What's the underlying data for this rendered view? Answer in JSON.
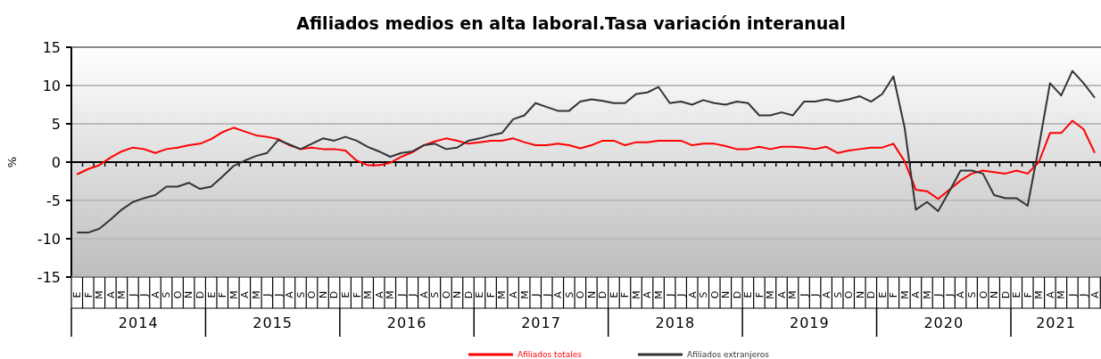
{
  "chart_data": {
    "type": "line",
    "title": "Afiliados medios en alta laboral.Tasa variación interanual",
    "ylabel": "%",
    "categories": [
      "E",
      "F",
      "M",
      "A",
      "M",
      "J",
      "J",
      "A",
      "S",
      "O",
      "N",
      "D",
      "E",
      "F",
      "M",
      "A",
      "M",
      "J",
      "J",
      "A",
      "S",
      "O",
      "N",
      "D",
      "E",
      "F",
      "M",
      "A",
      "M",
      "J",
      "J",
      "A",
      "S",
      "O",
      "N",
      "D",
      "E",
      "F",
      "M",
      "A",
      "M",
      "J",
      "J",
      "A",
      "S",
      "O",
      "N",
      "D",
      "E",
      "F",
      "M",
      "A",
      "M",
      "J",
      "J",
      "A",
      "S",
      "O",
      "N",
      "D",
      "E",
      "F",
      "M",
      "A",
      "M",
      "J",
      "J",
      "A",
      "S",
      "O",
      "N",
      "D",
      "E",
      "F",
      "M",
      "A",
      "M",
      "J",
      "J",
      "A",
      "S",
      "O",
      "N",
      "D",
      "E",
      "F",
      "M",
      "A",
      "M",
      "J",
      "J",
      "A"
    ],
    "annotations": [
      "2014",
      "2015",
      "2016",
      "2017",
      "2018",
      "2019",
      "2020",
      "2021"
    ],
    "series": [
      {
        "name": "Afiliados totales",
        "color": "#ff0000",
        "values": [
          -1.6,
          -0.9,
          -0.4,
          0.6,
          1.4,
          1.9,
          1.7,
          1.2,
          1.7,
          1.9,
          2.2,
          2.4,
          3.0,
          3.9,
          4.5,
          4.0,
          3.5,
          3.3,
          3.0,
          2.2,
          1.7,
          1.9,
          1.7,
          1.7,
          1.5,
          0.2,
          -0.4,
          -0.4,
          -0.1,
          0.7,
          1.3,
          2.2,
          2.7,
          3.1,
          2.8,
          2.4,
          2.6,
          2.8,
          2.8,
          3.1,
          2.6,
          2.2,
          2.2,
          2.4,
          2.2,
          1.8,
          2.2,
          2.8,
          2.8,
          2.2,
          2.6,
          2.6,
          2.8,
          2.8,
          2.8,
          2.2,
          2.4,
          2.4,
          2.1,
          1.7,
          1.7,
          2.0,
          1.7,
          2.0,
          2.0,
          1.9,
          1.7,
          2.0,
          1.2,
          1.5,
          1.7,
          1.9,
          1.9,
          2.4,
          0.1,
          -3.6,
          -3.8,
          -4.8,
          -3.6,
          -2.4,
          -1.5,
          -1.1,
          -1.3,
          -1.5,
          -1.1,
          -1.5,
          0.0,
          3.8,
          3.8,
          5.4,
          4.3,
          1.2
        ]
      },
      {
        "name": "Afiliados extranjeros",
        "color": "#333333",
        "values": [
          -9.2,
          -9.2,
          -8.7,
          -7.5,
          -6.2,
          -5.2,
          -4.7,
          -4.3,
          -3.2,
          -3.2,
          -2.7,
          -3.5,
          -3.2,
          -1.9,
          -0.5,
          0.2,
          0.8,
          1.2,
          2.9,
          2.3,
          1.7,
          2.4,
          3.1,
          2.8,
          3.3,
          2.8,
          2.0,
          1.4,
          0.7,
          1.2,
          1.4,
          2.2,
          2.4,
          1.7,
          1.9,
          2.8,
          3.1,
          3.5,
          3.8,
          5.6,
          6.1,
          7.7,
          7.2,
          6.7,
          6.7,
          7.9,
          8.2,
          8.0,
          7.7,
          7.7,
          8.9,
          9.1,
          9.8,
          7.7,
          7.9,
          7.5,
          8.1,
          7.7,
          7.5,
          7.9,
          7.7,
          6.1,
          6.1,
          6.5,
          6.1,
          7.9,
          7.9,
          8.2,
          7.9,
          8.2,
          8.6,
          7.9,
          8.9,
          11.2,
          4.5,
          -6.2,
          -5.2,
          -6.4,
          -3.8,
          -1.1,
          -1.1,
          -1.5,
          -4.3,
          -4.7,
          -4.7,
          -5.7,
          2.0,
          10.3,
          8.7,
          11.9,
          10.3,
          8.4
        ]
      }
    ],
    "ylim": [
      -15,
      15
    ],
    "yticks": [
      -15,
      -10,
      -5,
      0,
      5,
      10,
      15
    ],
    "grid": "y",
    "legend": "bottom",
    "marker": "none",
    "line_style": "solid"
  }
}
